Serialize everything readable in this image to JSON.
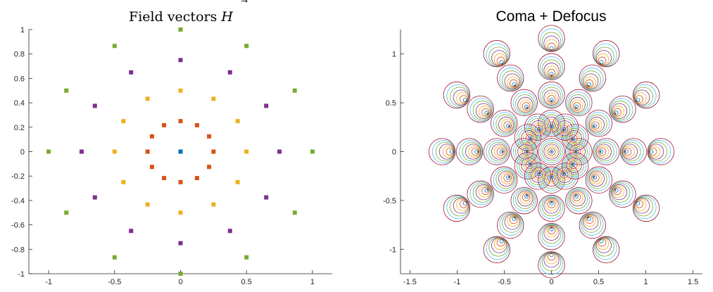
{
  "colors": {
    "ring0": "#0072BD",
    "ring1": "#D95319",
    "ring2": "#EDB120",
    "ring3": "#7E2F8E",
    "ring4": "#77AC30",
    "circle_palette": [
      "#0072BD",
      "#D95319",
      "#EDB120",
      "#7E2F8E",
      "#77AC30",
      "#4DBEEE",
      "#A2142F"
    ]
  },
  "chart_data": [
    {
      "type": "scatter",
      "title": "Field vectors ",
      "title_vector_symbol": "H",
      "title_vector_arrow": "⃗",
      "xlim": [
        -1.15,
        1.15
      ],
      "ylim": [
        -1,
        1
      ],
      "xticks": [
        -1,
        -0.5,
        0,
        0.5,
        1
      ],
      "xtick_labels": [
        "-1",
        "-0.5",
        "0",
        "0.5",
        "1"
      ],
      "yticks": [
        1,
        0.8,
        0.6,
        0.4,
        0.2,
        0,
        -0.2,
        -0.4,
        -0.6,
        -0.8,
        -1
      ],
      "ytick_labels": [
        "1",
        "0.8",
        "0.6",
        "0.4",
        "0.2",
        "0",
        "-0.2",
        "-0.4",
        "-0.6",
        "-0.8",
        "-1"
      ],
      "grid": false,
      "series": [
        {
          "radius": 0,
          "count": 1,
          "color_key": "ring0"
        },
        {
          "radius": 0.25,
          "count": 12,
          "color_key": "ring1"
        },
        {
          "radius": 0.5,
          "count": 12,
          "color_key": "ring2"
        },
        {
          "radius": 0.75,
          "count": 12,
          "color_key": "ring3"
        },
        {
          "radius": 1.0,
          "count": 12,
          "color_key": "ring4"
        }
      ]
    },
    {
      "type": "scatter",
      "title": "Coma + Defocus",
      "xlim": [
        -1.6,
        1.6
      ],
      "ylim": [
        -1.25,
        1.25
      ],
      "xticks": [
        -1.5,
        -1,
        -0.5,
        0,
        0.5,
        1,
        1.5
      ],
      "xtick_labels": [
        "-1.5",
        "-1",
        "-0.5",
        "0",
        "0.5",
        "1",
        "1.5"
      ],
      "yticks": [
        1,
        0.5,
        0,
        -0.5,
        -1
      ],
      "ytick_labels": [
        "1",
        "0.5",
        "0",
        "-0.5",
        "-1"
      ],
      "grid": false,
      "description_free": true,
      "rings": [
        {
          "field_radius": 0,
          "count": 1
        },
        {
          "field_radius": 0.25,
          "count": 12
        },
        {
          "field_radius": 0.5,
          "count": 12
        },
        {
          "field_radius": 0.75,
          "count": 12
        },
        {
          "field_radius": 1.0,
          "count": 12
        }
      ],
      "pupil_circle_radii": [
        0.02,
        0.04,
        0.06,
        0.08,
        0.1,
        0.12,
        0.14
      ],
      "coma_shift_factor": 0.85,
      "position_scale": 1.04
    }
  ]
}
